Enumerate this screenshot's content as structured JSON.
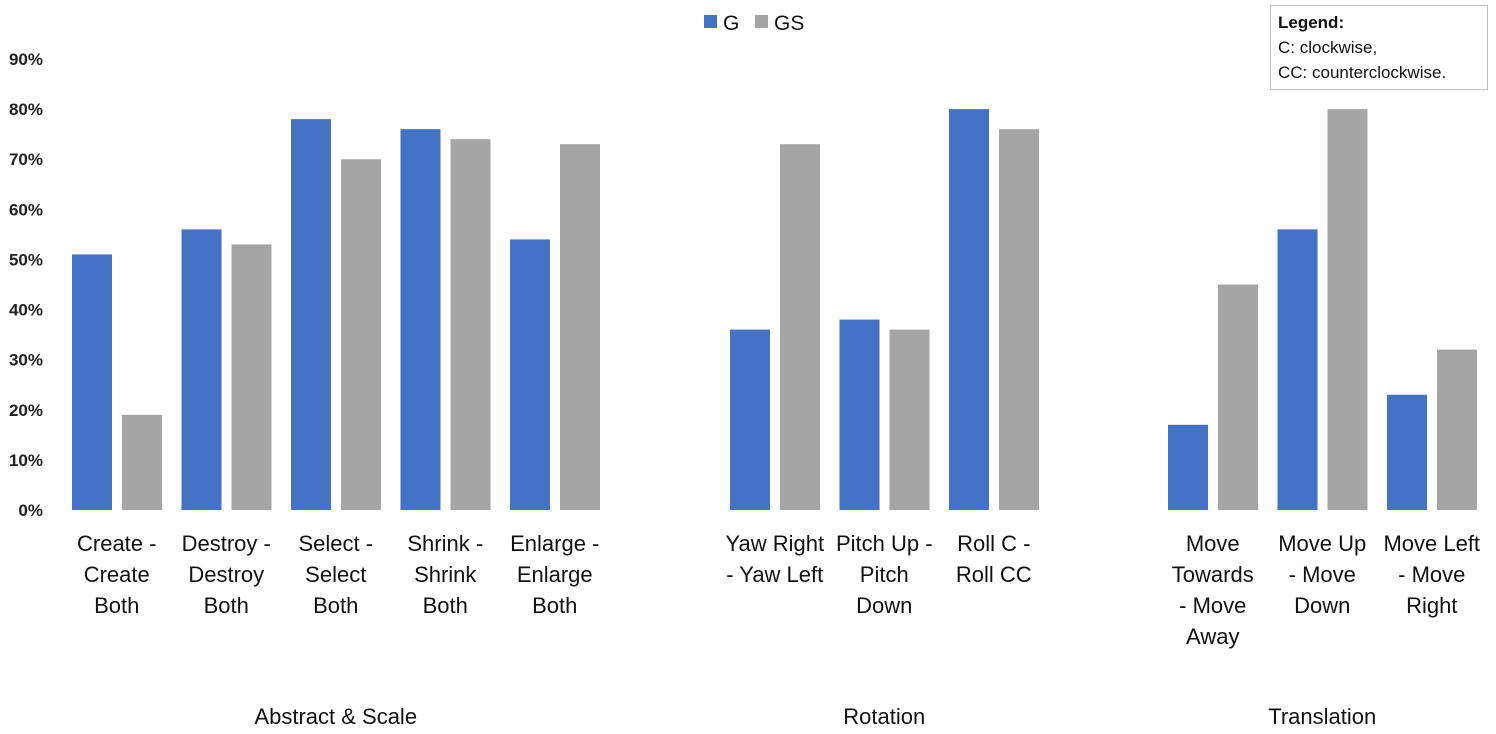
{
  "chart_data": {
    "type": "bar",
    "title": "",
    "xlabel": "",
    "ylabel": "",
    "ylim": [
      0,
      90
    ],
    "y_ticks": [
      "0%",
      "10%",
      "20%",
      "30%",
      "40%",
      "50%",
      "60%",
      "70%",
      "80%",
      "90%"
    ],
    "legend": {
      "position": "top-center",
      "entries": [
        "G",
        "GS"
      ]
    },
    "colors": {
      "G": "#4472C4",
      "GS": "#A5A5A5"
    },
    "groups": [
      {
        "name": "Abstract & Scale",
        "categories": [
          [
            "Create -",
            "Create",
            "Both"
          ],
          [
            "Destroy -",
            "Destroy",
            "Both"
          ],
          [
            "Select -",
            "Select",
            "Both"
          ],
          [
            "Shrink -",
            "Shrink",
            "Both"
          ],
          [
            "Enlarge -",
            "Enlarge",
            "Both"
          ]
        ],
        "series": [
          {
            "name": "G",
            "values": [
              51,
              56,
              78,
              76,
              54
            ]
          },
          {
            "name": "GS",
            "values": [
              19,
              53,
              70,
              74,
              73
            ]
          }
        ]
      },
      {
        "name": "Rotation",
        "categories": [
          [
            "Yaw Right",
            "- Yaw Left"
          ],
          [
            "Pitch Up -",
            "Pitch",
            "Down"
          ],
          [
            "Roll C -",
            "Roll CC"
          ]
        ],
        "series": [
          {
            "name": "G",
            "values": [
              36,
              38,
              80
            ]
          },
          {
            "name": "GS",
            "values": [
              73,
              36,
              76
            ]
          }
        ]
      },
      {
        "name": "Translation",
        "categories": [
          [
            "Move",
            "Towards",
            "- Move",
            "Away"
          ],
          [
            "Move Up",
            "- Move",
            "Down"
          ],
          [
            "Move Left",
            "- Move",
            "Right"
          ]
        ],
        "series": [
          {
            "name": "G",
            "values": [
              17,
              56,
              23
            ]
          },
          {
            "name": "GS",
            "values": [
              45,
              80,
              32
            ]
          }
        ]
      }
    ],
    "annotation": {
      "title": "Legend:",
      "lines": [
        "C: clockwise,",
        "CC: counterclockwise."
      ]
    }
  }
}
